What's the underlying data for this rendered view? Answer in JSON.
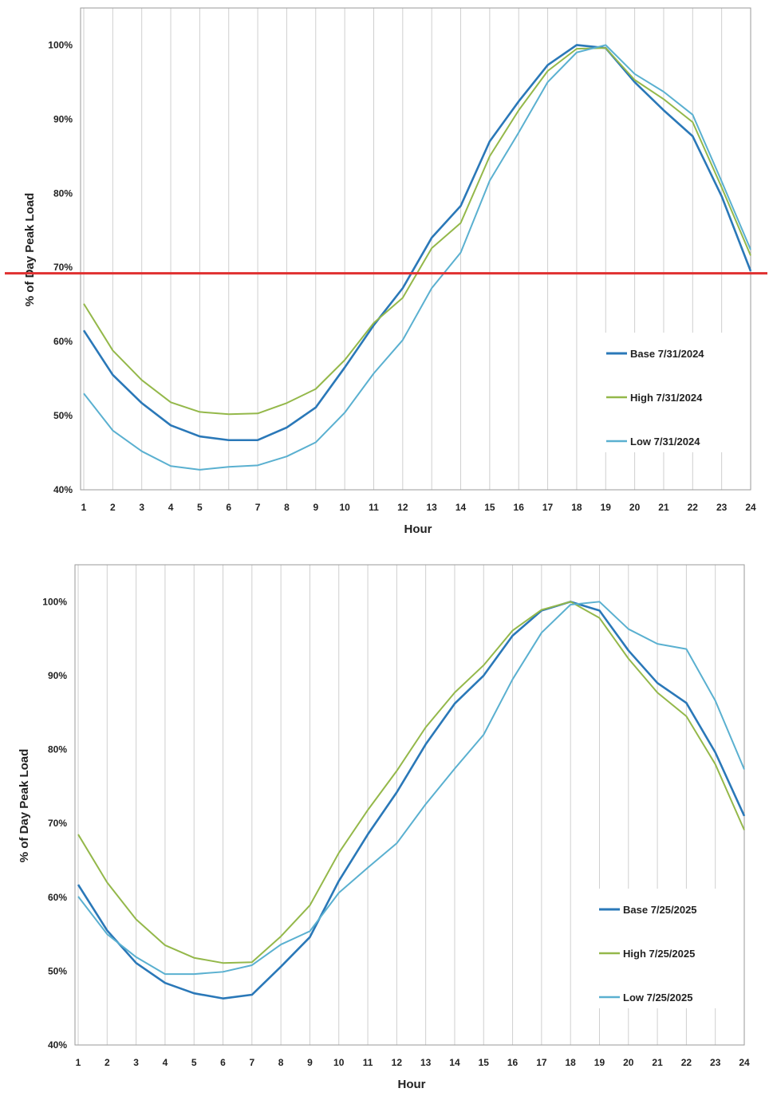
{
  "chart_data": [
    {
      "type": "line",
      "xlabel": "Hour",
      "ylabel": "% of Day Peak Load",
      "x": [
        1,
        2,
        3,
        4,
        5,
        6,
        7,
        8,
        9,
        10,
        11,
        12,
        13,
        14,
        15,
        16,
        17,
        18,
        19,
        20,
        21,
        22,
        23,
        24
      ],
      "ylim": [
        40,
        105
      ],
      "yticks": [
        "40%",
        "50%",
        "60%",
        "70%",
        "80%",
        "90%",
        "100%"
      ],
      "yticks_values": [
        40,
        50,
        60,
        70,
        80,
        90,
        100
      ],
      "grid": "vertical",
      "legend_position": "bottom-right",
      "reference_line": {
        "y": 69.2,
        "color": "#e03030"
      },
      "series": [
        {
          "name": "Base 7/31/2024",
          "color": "#2a78b8",
          "values": [
            61.5,
            55.5,
            51.7,
            48.7,
            47.2,
            46.7,
            46.7,
            48.4,
            51.1,
            56.5,
            62.2,
            67.2,
            74.0,
            78.3,
            87.0,
            92.4,
            97.3,
            100.0,
            99.6,
            95.0,
            91.2,
            87.7,
            79.6,
            69.5
          ]
        },
        {
          "name": "High 7/31/2024",
          "color": "#94b84a",
          "values": [
            65.1,
            58.8,
            54.8,
            51.8,
            50.5,
            50.2,
            50.3,
            51.7,
            53.6,
            57.5,
            62.5,
            65.9,
            72.6,
            76.0,
            85.0,
            91.2,
            96.5,
            99.5,
            99.6,
            95.3,
            92.7,
            89.6,
            80.8,
            71.6
          ]
        },
        {
          "name": "Low 7/31/2024",
          "color": "#5ab0d0",
          "values": [
            53.0,
            48.0,
            45.2,
            43.2,
            42.7,
            43.1,
            43.3,
            44.5,
            46.4,
            50.4,
            55.7,
            60.2,
            67.2,
            72.0,
            81.7,
            88.2,
            95.0,
            99.0,
            100.0,
            96.1,
            93.7,
            90.6,
            81.6,
            72.4
          ]
        }
      ]
    },
    {
      "type": "line",
      "xlabel": "Hour",
      "ylabel": "% of Day Peak Load",
      "x": [
        1,
        2,
        3,
        4,
        5,
        6,
        7,
        8,
        9,
        10,
        11,
        12,
        13,
        14,
        15,
        16,
        17,
        18,
        19,
        20,
        21,
        22,
        23,
        24
      ],
      "ylim": [
        40,
        105
      ],
      "yticks": [
        "40%",
        "50%",
        "60%",
        "70%",
        "80%",
        "90%",
        "100%"
      ],
      "yticks_values": [
        40,
        50,
        60,
        70,
        80,
        90,
        100
      ],
      "grid": "vertical",
      "legend_position": "bottom-right",
      "series": [
        {
          "name": "Base 7/25/2025",
          "color": "#2a78b8",
          "values": [
            61.7,
            55.5,
            51.1,
            48.4,
            47.0,
            46.3,
            46.8,
            50.6,
            54.6,
            62.2,
            68.5,
            74.2,
            80.7,
            86.2,
            90.0,
            95.4,
            98.8,
            100.0,
            98.8,
            93.4,
            89.0,
            86.3,
            79.6,
            71.0
          ]
        },
        {
          "name": "High 7/25/2025",
          "color": "#94b84a",
          "values": [
            68.5,
            62.0,
            57.0,
            53.5,
            51.8,
            51.1,
            51.2,
            54.7,
            58.9,
            66.0,
            71.8,
            77.1,
            83.0,
            87.7,
            91.4,
            96.1,
            98.9,
            100.0,
            97.8,
            92.3,
            87.7,
            84.5,
            78.0,
            69.1
          ]
        },
        {
          "name": "Low 7/25/2025",
          "color": "#5ab0d0",
          "values": [
            60.1,
            55.0,
            51.9,
            49.6,
            49.6,
            49.9,
            50.8,
            53.6,
            55.4,
            60.6,
            64.0,
            67.3,
            72.6,
            77.4,
            82.0,
            89.5,
            95.8,
            99.6,
            100.0,
            96.3,
            94.3,
            93.6,
            86.6,
            77.3
          ]
        }
      ]
    }
  ]
}
